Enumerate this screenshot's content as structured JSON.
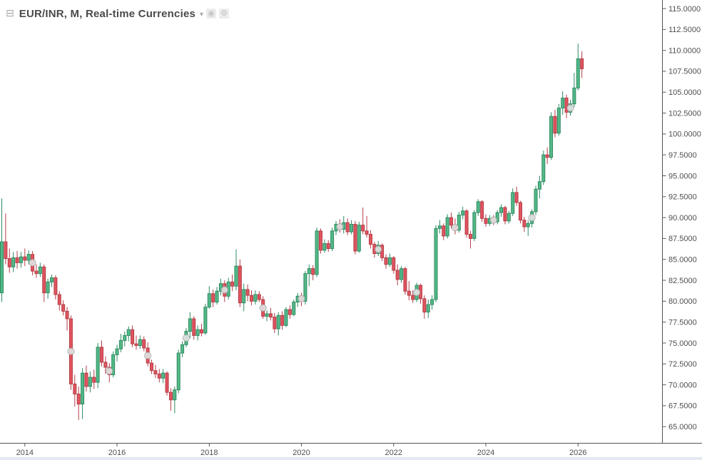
{
  "header": {
    "collapse_icon": "⊟",
    "title": "EUR/INR, M, Real-time Currencies",
    "dropdown_icon": "▾",
    "icons": {
      "source": "◉",
      "settings": "⚙"
    }
  },
  "colors": {
    "background": "#ffffff",
    "up_fill": "#53b987",
    "up_border": "#2f8a62",
    "down_fill": "#e0545e",
    "down_border": "#b43e48",
    "axis_line": "#555555",
    "axis_text": "#4f4f4f",
    "title_text": "#4a4a4a",
    "marker_fill": "#e3e3e3",
    "marker_border": "#a8a8a8",
    "bottom_strip": "#e3eaf2"
  },
  "price_axis": {
    "labels": [
      "115.0000",
      "112.5000",
      "110.0000",
      "107.5000",
      "105.0000",
      "102.5000",
      "100.0000",
      "97.5000",
      "95.0000",
      "92.5000",
      "90.0000",
      "87.5000",
      "85.0000",
      "82.5000",
      "80.0000",
      "77.5000",
      "75.0000",
      "72.5000",
      "70.0000",
      "67.5000",
      "65.0000"
    ]
  },
  "time_axis": {
    "labels": [
      {
        "text": "2014",
        "candle_index": 6
      },
      {
        "text": "2016",
        "candle_index": 30
      },
      {
        "text": "2018",
        "candle_index": 54
      },
      {
        "text": "2020",
        "candle_index": 78
      },
      {
        "text": "2022",
        "candle_index": 102
      },
      {
        "text": "2024",
        "candle_index": 126
      },
      {
        "text": "2026",
        "candle_index": 150
      }
    ]
  },
  "chart_data": {
    "type": "candlestick",
    "title": "EUR/INR, M, Real-time Currencies",
    "symbol": "EUR/INR",
    "interval": "M",
    "feed": "Real-time Currencies",
    "ylim": [
      65,
      115
    ],
    "y_tick_step": 2.5,
    "grid": false,
    "legend_position": "top-left",
    "candle_fields": [
      "month",
      "open",
      "high",
      "low",
      "close"
    ],
    "candles": [
      [
        "2013-07",
        81.0,
        92.3,
        79.9,
        87.1
      ],
      [
        "2013-08",
        87.1,
        90.5,
        84.4,
        85.1
      ],
      [
        "2013-09",
        85.1,
        86.3,
        83.4,
        84.1
      ],
      [
        "2013-10",
        84.1,
        85.9,
        83.5,
        85.2
      ],
      [
        "2013-11",
        85.2,
        86.0,
        83.9,
        84.6
      ],
      [
        "2013-12",
        84.6,
        85.9,
        84.0,
        85.3
      ],
      [
        "2014-01",
        85.3,
        86.3,
        84.2,
        84.9
      ],
      [
        "2014-02",
        84.9,
        86.1,
        84.4,
        85.6
      ],
      [
        "2014-03",
        85.6,
        86.0,
        83.1,
        83.6
      ],
      [
        "2014-04",
        83.6,
        84.4,
        82.8,
        83.3
      ],
      [
        "2014-05",
        83.3,
        84.6,
        82.9,
        84.1
      ],
      [
        "2014-06",
        84.1,
        84.4,
        79.9,
        81.0
      ],
      [
        "2014-07",
        81.0,
        82.7,
        80.3,
        82.3
      ],
      [
        "2014-08",
        82.3,
        83.2,
        81.7,
        82.8
      ],
      [
        "2014-09",
        82.8,
        83.1,
        80.2,
        80.8
      ],
      [
        "2014-10",
        80.8,
        81.2,
        78.9,
        79.6
      ],
      [
        "2014-11",
        79.6,
        80.1,
        78.3,
        78.8
      ],
      [
        "2014-12",
        78.8,
        79.3,
        76.5,
        77.9
      ],
      [
        "2015-01",
        77.9,
        78.3,
        69.4,
        70.1
      ],
      [
        "2015-02",
        70.1,
        71.2,
        67.4,
        68.9
      ],
      [
        "2015-03",
        68.9,
        69.8,
        65.8,
        67.7
      ],
      [
        "2015-04",
        67.7,
        72.0,
        65.9,
        71.4
      ],
      [
        "2015-05",
        71.4,
        72.3,
        69.2,
        69.8
      ],
      [
        "2015-06",
        69.8,
        71.6,
        69.1,
        70.9
      ],
      [
        "2015-07",
        70.9,
        71.8,
        69.5,
        70.3
      ],
      [
        "2015-08",
        70.3,
        75.0,
        69.6,
        74.5
      ],
      [
        "2015-09",
        74.5,
        75.3,
        72.2,
        72.7
      ],
      [
        "2015-10",
        72.7,
        73.4,
        71.3,
        72.1
      ],
      [
        "2015-11",
        72.1,
        72.6,
        70.3,
        71.2
      ],
      [
        "2015-12",
        71.2,
        74.0,
        70.9,
        73.6
      ],
      [
        "2016-01",
        73.6,
        74.8,
        72.8,
        74.3
      ],
      [
        "2016-02",
        74.3,
        76.1,
        73.9,
        75.3
      ],
      [
        "2016-03",
        75.3,
        76.4,
        74.6,
        75.9
      ],
      [
        "2016-04",
        75.9,
        77.0,
        75.2,
        76.6
      ],
      [
        "2016-05",
        76.6,
        77.1,
        74.5,
        74.9
      ],
      [
        "2016-06",
        74.9,
        75.9,
        74.2,
        74.7
      ],
      [
        "2016-07",
        74.7,
        75.9,
        74.3,
        75.4
      ],
      [
        "2016-08",
        75.4,
        75.8,
        74.0,
        74.4
      ],
      [
        "2016-09",
        74.4,
        75.1,
        72.2,
        72.6
      ],
      [
        "2016-10",
        72.6,
        73.0,
        71.3,
        71.7
      ],
      [
        "2016-11",
        71.7,
        72.4,
        70.8,
        71.3
      ],
      [
        "2016-12",
        71.3,
        71.9,
        70.3,
        70.8
      ],
      [
        "2017-01",
        70.8,
        71.9,
        70.2,
        71.4
      ],
      [
        "2017-02",
        71.4,
        71.6,
        68.7,
        69.1
      ],
      [
        "2017-03",
        69.1,
        69.6,
        66.9,
        68.2
      ],
      [
        "2017-04",
        68.2,
        69.8,
        66.6,
        69.4
      ],
      [
        "2017-05",
        69.4,
        74.2,
        69.0,
        73.8
      ],
      [
        "2017-06",
        73.8,
        75.2,
        73.3,
        74.8
      ],
      [
        "2017-07",
        74.8,
        76.8,
        74.5,
        76.4
      ],
      [
        "2017-08",
        76.4,
        78.7,
        75.6,
        77.9
      ],
      [
        "2017-09",
        77.9,
        78.2,
        75.4,
        75.9
      ],
      [
        "2017-10",
        75.9,
        77.1,
        75.3,
        76.6
      ],
      [
        "2017-11",
        76.6,
        77.3,
        75.8,
        76.2
      ],
      [
        "2017-12",
        76.2,
        79.7,
        76.0,
        79.3
      ],
      [
        "2018-01",
        79.3,
        81.8,
        79.1,
        80.9
      ],
      [
        "2018-02",
        80.9,
        81.4,
        79.3,
        79.9
      ],
      [
        "2018-03",
        79.9,
        81.7,
        79.6,
        81.2
      ],
      [
        "2018-04",
        81.2,
        82.7,
        80.7,
        82.1
      ],
      [
        "2018-05",
        82.1,
        82.5,
        79.9,
        80.6
      ],
      [
        "2018-06",
        80.6,
        82.8,
        80.2,
        82.3
      ],
      [
        "2018-07",
        82.3,
        83.2,
        81.2,
        81.8
      ],
      [
        "2018-08",
        81.8,
        86.2,
        81.3,
        84.2
      ],
      [
        "2018-09",
        84.2,
        85.0,
        79.3,
        79.8
      ],
      [
        "2018-10",
        79.8,
        82.1,
        78.8,
        81.4
      ],
      [
        "2018-11",
        81.4,
        82.0,
        80.0,
        80.7
      ],
      [
        "2018-12",
        80.7,
        81.3,
        79.5,
        80.0
      ],
      [
        "2019-01",
        80.0,
        81.3,
        79.6,
        80.8
      ],
      [
        "2019-02",
        80.8,
        81.2,
        79.9,
        80.2
      ],
      [
        "2019-03",
        80.2,
        80.6,
        77.9,
        78.2
      ],
      [
        "2019-04",
        78.2,
        78.9,
        77.6,
        78.5
      ],
      [
        "2019-05",
        78.5,
        79.2,
        77.7,
        78.1
      ],
      [
        "2019-06",
        78.1,
        78.6,
        76.2,
        76.7
      ],
      [
        "2019-07",
        76.7,
        78.7,
        75.9,
        78.3
      ],
      [
        "2019-08",
        78.3,
        78.8,
        76.6,
        77.1
      ],
      [
        "2019-09",
        77.1,
        79.3,
        76.9,
        79.0
      ],
      [
        "2019-10",
        79.0,
        79.5,
        77.9,
        78.4
      ],
      [
        "2019-11",
        78.4,
        80.2,
        78.2,
        79.9
      ],
      [
        "2019-12",
        79.9,
        81.0,
        79.3,
        80.6
      ],
      [
        "2020-01",
        80.6,
        81.0,
        79.4,
        80.0
      ],
      [
        "2020-02",
        80.0,
        83.6,
        79.6,
        83.3
      ],
      [
        "2020-03",
        83.3,
        84.4,
        81.8,
        83.9
      ],
      [
        "2020-04",
        83.9,
        84.3,
        82.5,
        83.2
      ],
      [
        "2020-05",
        83.2,
        88.8,
        82.9,
        88.4
      ],
      [
        "2020-06",
        88.4,
        88.7,
        85.7,
        86.1
      ],
      [
        "2020-07",
        86.1,
        87.4,
        85.8,
        86.9
      ],
      [
        "2020-08",
        86.9,
        87.3,
        85.9,
        86.3
      ],
      [
        "2020-09",
        86.3,
        88.8,
        86.0,
        88.4
      ],
      [
        "2020-10",
        88.4,
        89.6,
        87.9,
        89.2
      ],
      [
        "2020-11",
        89.2,
        89.8,
        88.2,
        88.6
      ],
      [
        "2020-12",
        88.6,
        90.2,
        88.1,
        89.4
      ],
      [
        "2021-01",
        89.4,
        89.9,
        87.9,
        88.3
      ],
      [
        "2021-02",
        88.3,
        89.7,
        88.0,
        89.2
      ],
      [
        "2021-03",
        89.2,
        89.6,
        85.6,
        86.0
      ],
      [
        "2021-04",
        86.0,
        89.5,
        85.8,
        89.1
      ],
      [
        "2021-05",
        89.1,
        91.2,
        88.0,
        88.4
      ],
      [
        "2021-06",
        88.4,
        90.2,
        87.6,
        88.0
      ],
      [
        "2021-07",
        88.0,
        88.5,
        86.3,
        86.8
      ],
      [
        "2021-08",
        86.8,
        87.1,
        85.2,
        85.7
      ],
      [
        "2021-09",
        85.7,
        87.2,
        85.4,
        86.7
      ],
      [
        "2021-10",
        86.7,
        86.9,
        84.8,
        85.2
      ],
      [
        "2021-11",
        85.2,
        85.6,
        83.9,
        84.4
      ],
      [
        "2021-12",
        84.4,
        85.7,
        84.1,
        85.2
      ],
      [
        "2022-01",
        85.2,
        85.4,
        83.3,
        83.7
      ],
      [
        "2022-02",
        83.7,
        84.4,
        81.9,
        82.6
      ],
      [
        "2022-03",
        82.6,
        84.2,
        82.2,
        83.9
      ],
      [
        "2022-04",
        83.9,
        84.1,
        80.8,
        81.2
      ],
      [
        "2022-05",
        81.2,
        82.4,
        80.1,
        80.7
      ],
      [
        "2022-06",
        80.7,
        81.3,
        79.8,
        80.2
      ],
      [
        "2022-07",
        80.2,
        82.2,
        79.9,
        81.9
      ],
      [
        "2022-08",
        81.9,
        82.1,
        79.7,
        80.3
      ],
      [
        "2022-09",
        80.3,
        80.7,
        77.9,
        78.7
      ],
      [
        "2022-10",
        78.7,
        80.2,
        78.0,
        79.6
      ],
      [
        "2022-11",
        79.6,
        80.7,
        79.0,
        80.2
      ],
      [
        "2022-12",
        80.2,
        89.1,
        79.9,
        88.7
      ],
      [
        "2023-01",
        88.7,
        89.7,
        88.1,
        89.0
      ],
      [
        "2023-02",
        89.0,
        89.3,
        87.3,
        87.8
      ],
      [
        "2023-03",
        87.8,
        90.4,
        87.5,
        90.0
      ],
      [
        "2023-04",
        90.0,
        90.6,
        88.7,
        89.1
      ],
      [
        "2023-05",
        89.1,
        89.9,
        88.0,
        88.5
      ],
      [
        "2023-06",
        88.5,
        90.7,
        88.2,
        90.3
      ],
      [
        "2023-07",
        90.3,
        91.3,
        89.8,
        90.8
      ],
      [
        "2023-08",
        90.8,
        91.0,
        87.6,
        88.0
      ],
      [
        "2023-09",
        88.0,
        88.4,
        86.3,
        87.5
      ],
      [
        "2023-10",
        87.5,
        90.9,
        87.2,
        90.6
      ],
      [
        "2023-11",
        90.6,
        92.2,
        90.2,
        91.9
      ],
      [
        "2023-12",
        91.9,
        92.1,
        89.5,
        89.9
      ],
      [
        "2024-01",
        89.9,
        90.4,
        88.9,
        89.3
      ],
      [
        "2024-02",
        89.3,
        90.3,
        89.0,
        89.9
      ],
      [
        "2024-03",
        89.9,
        90.3,
        89.1,
        89.5
      ],
      [
        "2024-04",
        89.5,
        90.9,
        89.2,
        90.6
      ],
      [
        "2024-05",
        90.6,
        91.6,
        90.1,
        91.2
      ],
      [
        "2024-06",
        91.2,
        91.4,
        89.2,
        89.6
      ],
      [
        "2024-07",
        89.6,
        90.8,
        89.3,
        90.5
      ],
      [
        "2024-08",
        90.5,
        93.5,
        90.2,
        93.0
      ],
      [
        "2024-09",
        93.0,
        93.7,
        91.4,
        91.8
      ],
      [
        "2024-10",
        91.8,
        92.0,
        89.3,
        89.7
      ],
      [
        "2024-11",
        89.7,
        90.1,
        88.3,
        88.9
      ],
      [
        "2024-12",
        88.9,
        89.7,
        87.8,
        89.3
      ],
      [
        "2025-01",
        89.3,
        91.0,
        88.8,
        90.7
      ],
      [
        "2025-02",
        90.7,
        93.8,
        90.3,
        93.4
      ],
      [
        "2025-03",
        93.4,
        95.0,
        92.3,
        94.3
      ],
      [
        "2025-04",
        94.3,
        98.0,
        93.9,
        97.5
      ],
      [
        "2025-05",
        97.5,
        98.4,
        96.4,
        97.2
      ],
      [
        "2025-06",
        97.2,
        102.6,
        96.9,
        102.1
      ],
      [
        "2025-07",
        102.1,
        102.9,
        99.6,
        100.1
      ],
      [
        "2025-08",
        100.1,
        103.6,
        99.8,
        103.1
      ],
      [
        "2025-09",
        103.1,
        105.1,
        102.3,
        104.3
      ],
      [
        "2025-10",
        104.3,
        104.7,
        101.9,
        102.6
      ],
      [
        "2025-11",
        102.6,
        104.1,
        102.2,
        103.6
      ],
      [
        "2025-12",
        103.6,
        107.3,
        103.2,
        105.5
      ],
      [
        "2026-01",
        105.5,
        110.8,
        105.2,
        109.0
      ],
      [
        "2026-02",
        109.0,
        109.9,
        106.7,
        107.8
      ]
    ],
    "markers": [
      8,
      18,
      28,
      38,
      48,
      58,
      68,
      78,
      88,
      98,
      108,
      118,
      128,
      138,
      148
    ]
  }
}
